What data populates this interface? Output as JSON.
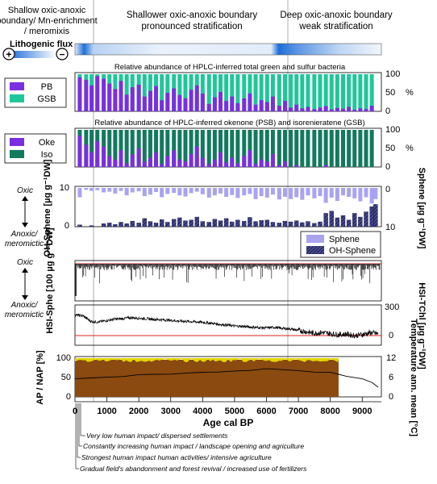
{
  "header": {
    "zones": [
      {
        "lines": [
          "Shallow oxic-anoxic",
          "boundary/ Mn-enrichment",
          "/ meromixis"
        ]
      },
      {
        "lines": [
          "Shallower oxic-anoxic boundary",
          "pronounced stratification"
        ]
      },
      {
        "lines": [
          "Deep oxic-anoxic boundary",
          "weak stratification"
        ]
      }
    ],
    "flux_title": "Lithogenic flux",
    "flux_plus": "+",
    "flux_minus": "−"
  },
  "colors": {
    "pb": "#7a2fe0",
    "gsb": "#1ec79a",
    "oke": "#7a2fe0",
    "iso": "#127a5e",
    "sphene": "#a9a3f0",
    "oh_sphene": "#2b2d6b",
    "red_line": "#e02020",
    "ap": "#8a4a10",
    "nap": "#e3d400",
    "flux_blue": "#1f6fd8"
  },
  "chart_data": [
    {
      "id": "pb_gsb",
      "type": "bar",
      "title": "Relative abundance of HPLC-inferred total green and sulfur bacteria",
      "ylabel": "%",
      "yticks": [
        "100",
        "50",
        "0"
      ],
      "ylim": [
        0,
        100
      ],
      "series": [
        {
          "name": "PB",
          "note": "remainder to 100% is GSB"
        },
        {
          "name": "GSB"
        }
      ],
      "x": [
        150,
        350,
        520,
        700,
        900,
        1080,
        1260,
        1440,
        1620,
        1800,
        2000,
        2180,
        2360,
        2540,
        2720,
        2900,
        3100,
        3280,
        3460,
        3640,
        3820,
        4000,
        4200,
        4380,
        4560,
        4740,
        4920,
        5100,
        5300,
        5480,
        5660,
        5840,
        6020,
        6200,
        6400,
        6580,
        6760,
        6940,
        7120,
        7300,
        7500,
        7680,
        7860,
        8040,
        8220,
        8400,
        8580,
        8760,
        8940,
        9120,
        9300
      ],
      "pb_values": [
        92,
        85,
        70,
        95,
        88,
        75,
        60,
        82,
        45,
        65,
        72,
        40,
        55,
        68,
        30,
        50,
        62,
        44,
        35,
        58,
        70,
        48,
        20,
        38,
        52,
        28,
        40,
        22,
        35,
        48,
        18,
        30,
        25,
        40,
        15,
        28,
        10,
        18,
        8,
        12,
        6,
        10,
        14,
        5,
        9,
        7,
        12,
        4,
        8,
        6,
        15
      ]
    },
    {
      "id": "oke_iso",
      "type": "bar",
      "title": "Relative abundance of HPLC-inferred okenone (PSB) and isorenieratene (GSB)",
      "ylabel": "%",
      "yticks": [
        "100",
        "50",
        "0"
      ],
      "ylim": [
        0,
        100
      ],
      "series": [
        {
          "name": "Oke",
          "note": "remainder to 100% is Iso"
        },
        {
          "name": "Iso"
        }
      ],
      "x": [
        150,
        350,
        520,
        700,
        900,
        1080,
        1260,
        1440,
        1620,
        1800,
        2000,
        2180,
        2360,
        2540,
        2720,
        2900,
        3100,
        3280,
        3460,
        3640,
        3820,
        4000,
        4200,
        4380,
        4560,
        4740,
        4920,
        5100,
        5300,
        5480,
        5660,
        5840,
        6020,
        6200,
        6400,
        6580,
        6760,
        6940,
        7120,
        7300,
        7500,
        7680,
        7860,
        8040,
        8220,
        8400,
        8580,
        8760,
        8940,
        9120,
        9300
      ],
      "oke_values": [
        85,
        60,
        40,
        70,
        55,
        30,
        20,
        45,
        10,
        35,
        50,
        15,
        25,
        40,
        8,
        30,
        45,
        20,
        15,
        35,
        55,
        25,
        8,
        20,
        40,
        12,
        25,
        10,
        30,
        45,
        8,
        20,
        15,
        35,
        5,
        15,
        0,
        5,
        0,
        0,
        0,
        0,
        5,
        0,
        0,
        0,
        0,
        0,
        0,
        0,
        0
      ]
    },
    {
      "id": "sphene",
      "type": "bar",
      "ylabel_left": "OH-Sphene [µg g⁻¹DW]",
      "ylabel_right": "Sphene [µg g⁻¹DW]",
      "yticks_left": [
        "10",
        "0"
      ],
      "yticks_right": [
        "0",
        "10"
      ],
      "label_top": "Oxic",
      "label_bottom": [
        "Anoxic/",
        "meromictic"
      ],
      "legend": [
        "Sphene",
        "OH-Sphene"
      ],
      "x": [
        150,
        350,
        520,
        700,
        900,
        1080,
        1260,
        1440,
        1620,
        1800,
        2000,
        2180,
        2360,
        2540,
        2720,
        2900,
        3100,
        3280,
        3460,
        3640,
        3820,
        4000,
        4200,
        4380,
        4560,
        4740,
        4920,
        5100,
        5300,
        5480,
        5660,
        5840,
        6020,
        6200,
        6400,
        6580,
        6760,
        6940,
        7120,
        7300,
        7500,
        7680,
        7860,
        8040,
        8220,
        8400,
        8580,
        8760,
        8940,
        9120,
        9300,
        9420
      ],
      "sphene_values": [
        2.5,
        0.5,
        0.8,
        0.6,
        1.2,
        1.0,
        1.5,
        0.8,
        2.0,
        1.2,
        0.9,
        2.2,
        1.8,
        1.1,
        2.5,
        1.6,
        1.3,
        2.0,
        2.3,
        1.4,
        1.0,
        1.7,
        2.6,
        2.0,
        1.5,
        2.4,
        1.9,
        2.7,
        2.0,
        1.6,
        3.0,
        2.2,
        2.6,
        1.8,
        3.1,
        2.4,
        3.0,
        2.5,
        3.2,
        2.0,
        2.8,
        2.2,
        4.0,
        2.6,
        3.5,
        2.0,
        2.4,
        2.8,
        3.6,
        2.5,
        4.2,
        3.0
      ],
      "oh_values": [
        0.5,
        0,
        0.3,
        0,
        0.8,
        1.0,
        0.6,
        1.2,
        0.8,
        1.5,
        1.0,
        2.2,
        1.4,
        1.0,
        1.9,
        1.2,
        2.0,
        2.4,
        1.6,
        1.8,
        2.6,
        1.4,
        1.2,
        2.0,
        1.6,
        2.2,
        1.3,
        1.8,
        1.5,
        2.5,
        1.4,
        1.7,
        1.8,
        1.2,
        1.0,
        1.5,
        1.3,
        1.6,
        1.1,
        1.4,
        0.9,
        1.3,
        3.6,
        4.2,
        2.4,
        3.0,
        1.8,
        3.6,
        2.6,
        4.0,
        5.4,
        6.0
      ]
    },
    {
      "id": "hsi_sphe",
      "type": "line",
      "ylabel": "HSI-Sphe [100 µg g⁻¹DW]",
      "label_top": "Oxic",
      "label_bottom": [
        "Anoxic/",
        "meromictic"
      ],
      "note": "spike series, zero line at top"
    },
    {
      "id": "hsi_tchl",
      "type": "line",
      "ylabel": "HSI-TChl [µg g⁻¹DW]",
      "yticks_right": [
        "300",
        "0"
      ],
      "ylim": [
        -80,
        300
      ],
      "x": [
        0,
        250,
        500,
        750,
        1000,
        1250,
        1500,
        1750,
        2000,
        2250,
        2500,
        2750,
        3000,
        3250,
        3500,
        3750,
        4000,
        4250,
        4500,
        4750,
        5000,
        5250,
        5500,
        5750,
        6000,
        6250,
        6500,
        6750,
        7000,
        7250,
        7500,
        7750,
        8000,
        8250,
        8500,
        8750,
        9000,
        9250,
        9500
      ],
      "y": [
        220,
        210,
        150,
        145,
        160,
        175,
        180,
        190,
        185,
        178,
        172,
        168,
        162,
        155,
        150,
        148,
        140,
        132,
        120,
        112,
        102,
        98,
        90,
        85,
        82,
        88,
        76,
        70,
        55,
        40,
        25,
        32,
        20,
        10,
        15,
        0,
        10,
        30,
        20
      ]
    },
    {
      "id": "ap_nap_temp",
      "type": "area",
      "ylabel_left": "AP / NAP [%]",
      "ylabel_right": "Temperature ann. mean [°C]",
      "yticks_left": [
        "100",
        "50",
        "0"
      ],
      "yticks_right": [
        "12",
        "6",
        "0"
      ],
      "xlabel": "Age cal BP",
      "xticks": [
        "0",
        "1000",
        "2000",
        "3000",
        "4000",
        "5000",
        "6000",
        "7000",
        "8000",
        "9000"
      ],
      "xlim": [
        0,
        9600
      ],
      "ap_end": 8260,
      "temp_x": [
        0,
        500,
        1000,
        1500,
        2000,
        2500,
        3000,
        3500,
        4000,
        4500,
        5000,
        5500,
        6000,
        6500,
        7000,
        7500,
        8000,
        8260,
        8500,
        9000,
        9300,
        9500
      ],
      "temp_y": [
        5.6,
        6.0,
        6.3,
        6.5,
        6.8,
        7.0,
        7.2,
        7.3,
        7.5,
        7.8,
        8.0,
        8.2,
        8.6,
        8.4,
        8.0,
        7.8,
        7.6,
        7.0,
        6.4,
        5.6,
        4.5,
        3.0
      ]
    }
  ],
  "annotations": [
    "Very low human impact/ dispersed settlements",
    "Constantly increasing human impact / landscape opening and agriculture",
    "Strongest human impact human activities/ intensive agriculture",
    "Gradual field's abandonment and forest revival / increased use of fertilizers"
  ]
}
